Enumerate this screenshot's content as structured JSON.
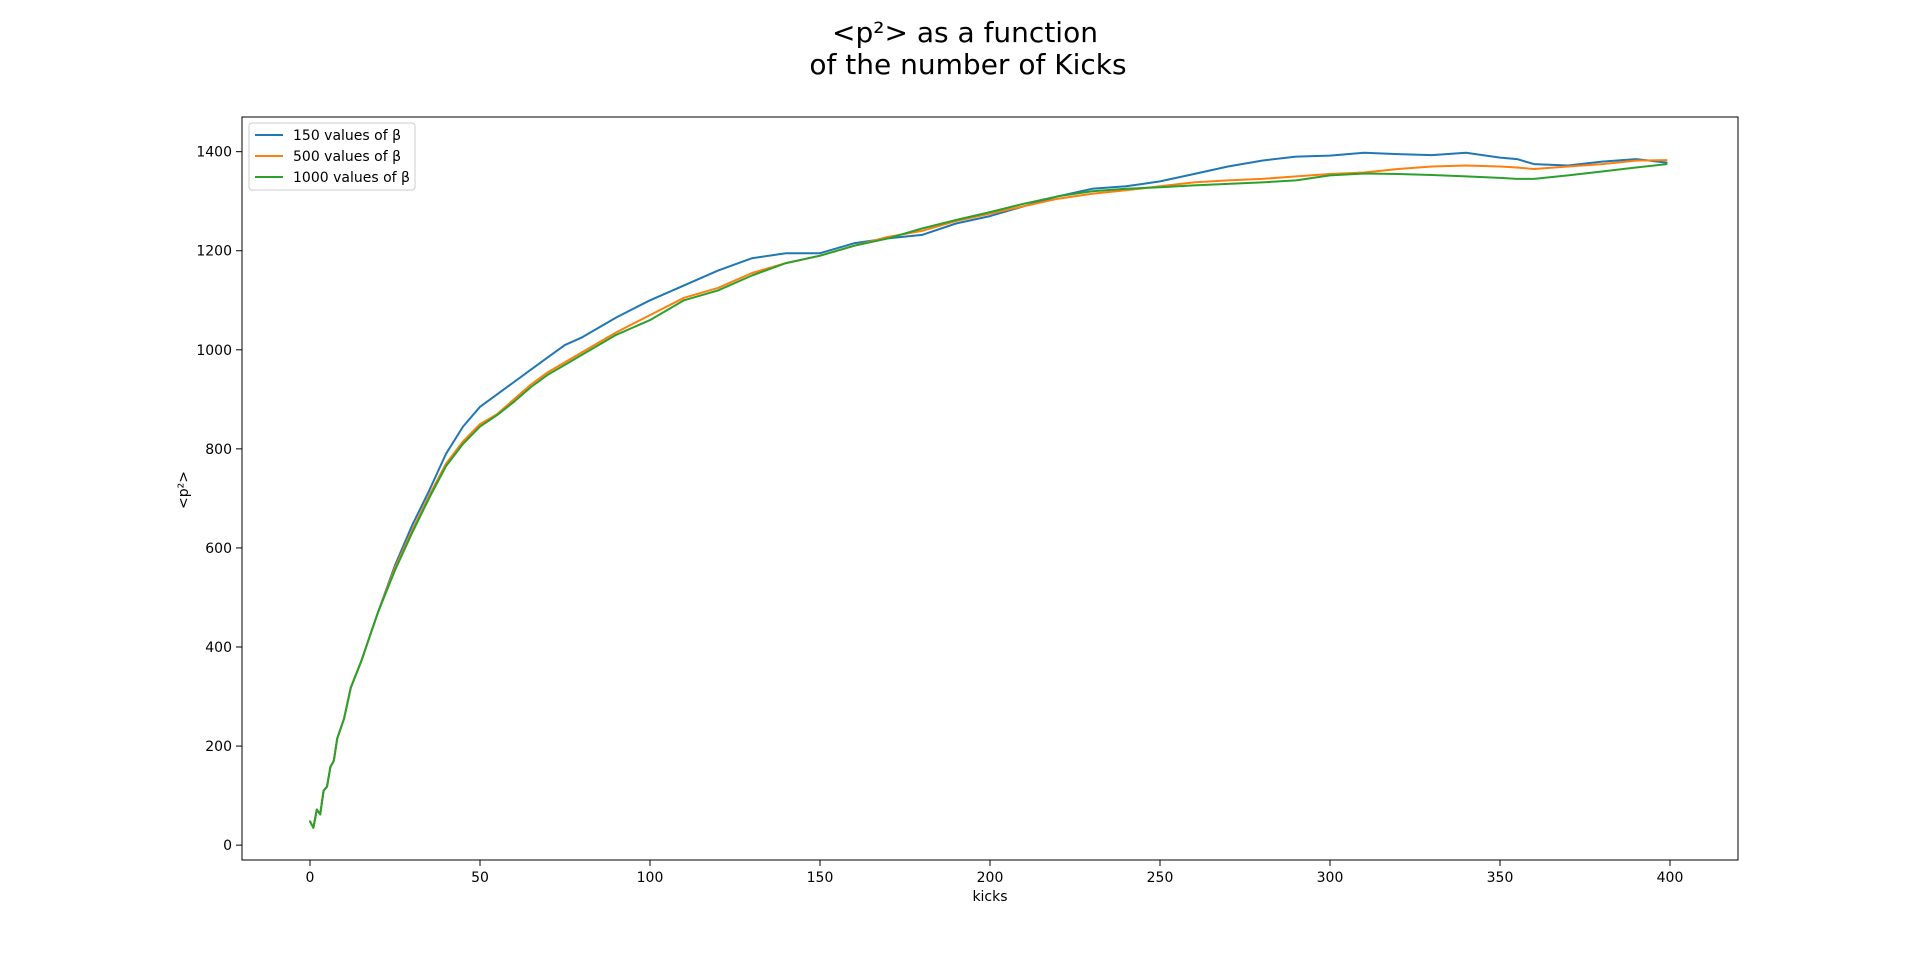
{
  "chart_data": {
    "type": "line",
    "title_lines": [
      "<p²> as a function",
      "of the number of Kicks"
    ],
    "xlabel": "kicks",
    "ylabel": "<p²>",
    "xlim": [
      -20,
      420
    ],
    "ylim": [
      -30,
      1470
    ],
    "x_ticks": [
      0,
      50,
      100,
      150,
      200,
      250,
      300,
      350,
      400
    ],
    "y_ticks": [
      0,
      200,
      400,
      600,
      800,
      1000,
      1200,
      1400
    ],
    "grid": false,
    "legend_position": "upper-left",
    "x": [
      0,
      1,
      2,
      3,
      4,
      5,
      6,
      7,
      8,
      10,
      12,
      15,
      18,
      20,
      25,
      30,
      35,
      40,
      45,
      50,
      55,
      60,
      65,
      70,
      75,
      80,
      90,
      100,
      110,
      120,
      130,
      140,
      150,
      160,
      170,
      180,
      190,
      200,
      210,
      220,
      230,
      240,
      250,
      260,
      270,
      280,
      290,
      300,
      310,
      320,
      330,
      340,
      350,
      355,
      360,
      370,
      380,
      390,
      399
    ],
    "series": [
      {
        "name": "150 values of β",
        "color": "#1f77b4",
        "values": [
          48,
          35,
          72,
          62,
          110,
          118,
          158,
          170,
          215,
          255,
          318,
          370,
          430,
          470,
          565,
          645,
          715,
          790,
          845,
          885,
          910,
          935,
          960,
          985,
          1010,
          1025,
          1065,
          1100,
          1130,
          1160,
          1185,
          1195,
          1195,
          1215,
          1225,
          1232,
          1255,
          1270,
          1290,
          1310,
          1325,
          1330,
          1340,
          1355,
          1370,
          1382,
          1390,
          1392,
          1398,
          1395,
          1393,
          1398,
          1388,
          1385,
          1375,
          1372,
          1380,
          1385,
          1378
        ]
      },
      {
        "name": "500 values of β",
        "color": "#ff7f0e",
        "values": [
          48,
          35,
          72,
          62,
          110,
          118,
          158,
          170,
          215,
          255,
          318,
          370,
          430,
          470,
          560,
          635,
          705,
          770,
          815,
          850,
          870,
          900,
          930,
          955,
          975,
          995,
          1035,
          1070,
          1105,
          1125,
          1155,
          1175,
          1190,
          1210,
          1228,
          1240,
          1260,
          1275,
          1290,
          1305,
          1315,
          1322,
          1330,
          1338,
          1342,
          1345,
          1350,
          1355,
          1358,
          1365,
          1370,
          1372,
          1370,
          1368,
          1365,
          1370,
          1375,
          1382,
          1383
        ]
      },
      {
        "name": "1000 values of β",
        "color": "#2ca02c",
        "values": [
          48,
          35,
          72,
          62,
          110,
          118,
          158,
          170,
          215,
          255,
          318,
          370,
          430,
          470,
          555,
          630,
          700,
          765,
          810,
          845,
          868,
          895,
          925,
          950,
          970,
          990,
          1030,
          1060,
          1100,
          1120,
          1150,
          1175,
          1190,
          1210,
          1225,
          1245,
          1262,
          1278,
          1295,
          1310,
          1320,
          1325,
          1328,
          1332,
          1335,
          1338,
          1342,
          1352,
          1356,
          1355,
          1353,
          1350,
          1347,
          1345,
          1345,
          1352,
          1360,
          1368,
          1375
        ]
      }
    ]
  }
}
